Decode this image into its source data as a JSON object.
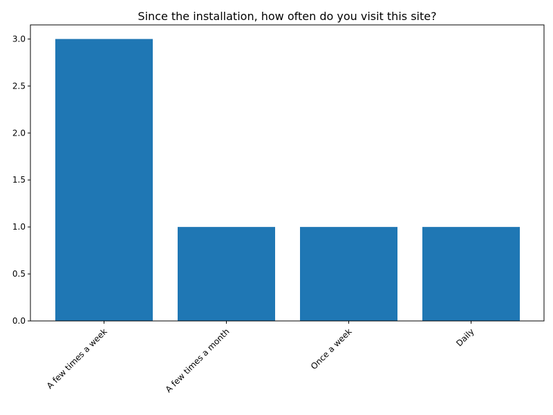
{
  "chart_data": {
    "type": "bar",
    "title": "Since the installation, how often do you visit this site?",
    "xlabel": "",
    "ylabel": "",
    "categories": [
      "A few times a week",
      "A few times a month",
      "Once a week",
      "Daily"
    ],
    "values": [
      3,
      1,
      1,
      1
    ],
    "ylim": [
      0,
      3.15
    ],
    "yticks": [
      "0.0",
      "0.5",
      "1.0",
      "1.5",
      "2.0",
      "2.5",
      "3.0"
    ],
    "bar_color": "#1f77b4",
    "grid": false,
    "x_tick_rotation_deg": 45
  }
}
